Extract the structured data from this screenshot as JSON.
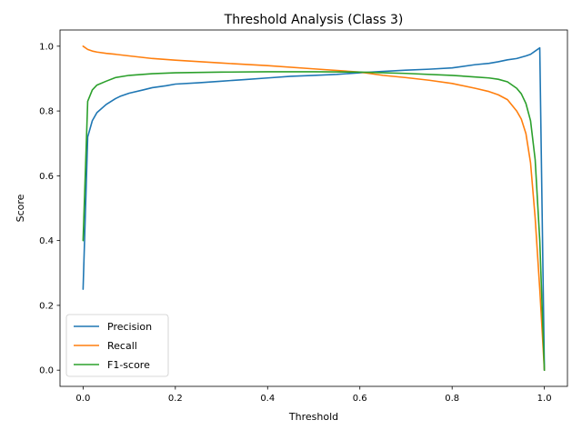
{
  "chart_data": {
    "type": "line",
    "title": "Threshold Analysis (Class 3)",
    "xlabel": "Threshold",
    "ylabel": "Score",
    "xlim": [
      -0.05,
      1.05
    ],
    "ylim": [
      -0.05,
      1.05
    ],
    "xticks": [
      0.0,
      0.2,
      0.4,
      0.6,
      0.8,
      1.0
    ],
    "xtick_labels": [
      "0.0",
      "0.2",
      "0.4",
      "0.6",
      "0.8",
      "1.0"
    ],
    "yticks": [
      0.0,
      0.2,
      0.4,
      0.6,
      0.8,
      1.0
    ],
    "ytick_labels": [
      "0.0",
      "0.2",
      "0.4",
      "0.6",
      "0.8",
      "1.0"
    ],
    "grid": false,
    "legend_position": "lower-left",
    "series": [
      {
        "name": "Precision",
        "color": "#1f77b4",
        "x": [
          0.0,
          0.01,
          0.02,
          0.03,
          0.05,
          0.07,
          0.08,
          0.1,
          0.13,
          0.15,
          0.18,
          0.2,
          0.25,
          0.3,
          0.35,
          0.4,
          0.45,
          0.5,
          0.55,
          0.6,
          0.65,
          0.7,
          0.75,
          0.8,
          0.85,
          0.88,
          0.9,
          0.92,
          0.94,
          0.96,
          0.97,
          0.98,
          0.99,
          1.0
        ],
        "y": [
          0.25,
          0.72,
          0.77,
          0.795,
          0.82,
          0.838,
          0.845,
          0.855,
          0.865,
          0.872,
          0.878,
          0.883,
          0.887,
          0.892,
          0.897,
          0.902,
          0.907,
          0.91,
          0.913,
          0.918,
          0.922,
          0.926,
          0.929,
          0.933,
          0.943,
          0.947,
          0.952,
          0.958,
          0.962,
          0.97,
          0.975,
          0.985,
          0.995,
          0.0
        ]
      },
      {
        "name": "Recall",
        "color": "#ff7f0e",
        "x": [
          0.0,
          0.01,
          0.02,
          0.03,
          0.05,
          0.07,
          0.1,
          0.15,
          0.2,
          0.3,
          0.4,
          0.5,
          0.6,
          0.65,
          0.7,
          0.75,
          0.8,
          0.85,
          0.88,
          0.9,
          0.92,
          0.94,
          0.95,
          0.96,
          0.97,
          0.98,
          0.99,
          1.0
        ],
        "y": [
          1.0,
          0.99,
          0.985,
          0.982,
          0.978,
          0.975,
          0.97,
          0.962,
          0.957,
          0.948,
          0.94,
          0.93,
          0.92,
          0.91,
          0.903,
          0.895,
          0.885,
          0.87,
          0.86,
          0.85,
          0.835,
          0.8,
          0.775,
          0.73,
          0.64,
          0.47,
          0.25,
          0.0
        ]
      },
      {
        "name": "F1-score",
        "color": "#2ca02c",
        "x": [
          0.0,
          0.01,
          0.02,
          0.03,
          0.05,
          0.07,
          0.1,
          0.15,
          0.2,
          0.3,
          0.4,
          0.5,
          0.6,
          0.7,
          0.8,
          0.85,
          0.88,
          0.9,
          0.92,
          0.94,
          0.95,
          0.96,
          0.97,
          0.98,
          0.99,
          1.0
        ],
        "y": [
          0.4,
          0.83,
          0.865,
          0.88,
          0.892,
          0.903,
          0.91,
          0.915,
          0.918,
          0.92,
          0.921,
          0.921,
          0.92,
          0.916,
          0.91,
          0.905,
          0.902,
          0.898,
          0.89,
          0.87,
          0.853,
          0.823,
          0.77,
          0.65,
          0.4,
          0.0
        ]
      }
    ]
  }
}
